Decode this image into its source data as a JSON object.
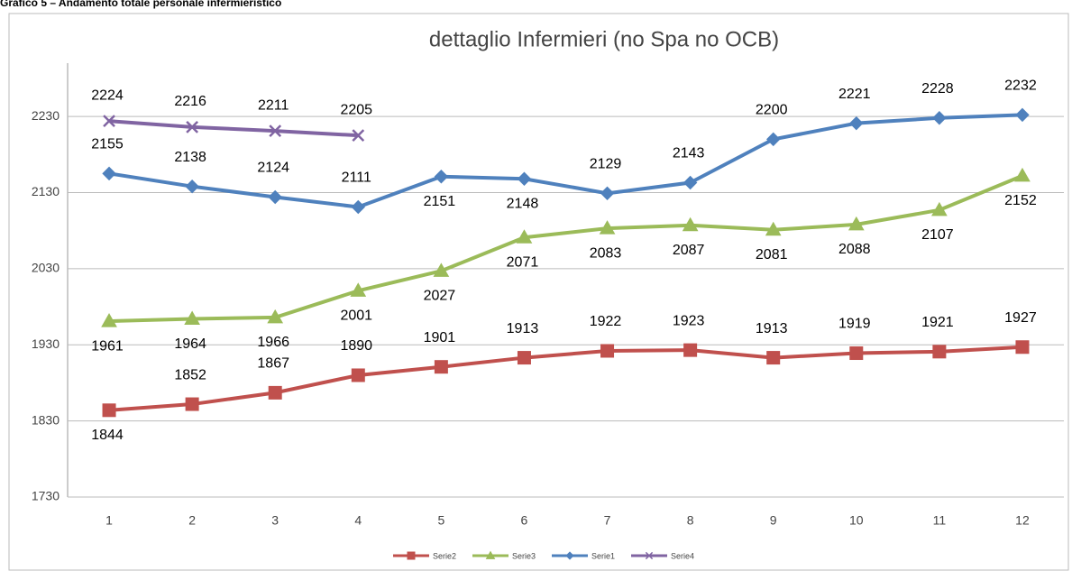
{
  "header": "Grafico 5 – Andamento totale personale infermieristico",
  "chart_data": {
    "type": "line",
    "title": "dettaglio Infermieri (no Spa no OCB)",
    "categories": [
      "1",
      "2",
      "3",
      "4",
      "5",
      "6",
      "7",
      "8",
      "9",
      "10",
      "11",
      "12"
    ],
    "ylim": [
      1730,
      2300
    ],
    "yticks": [
      1730,
      1830,
      1930,
      2030,
      2130,
      2230
    ],
    "grid": true,
    "legend": "bottom",
    "series": [
      {
        "name": "Serie2",
        "color": "#c0504d",
        "marker": "square",
        "values": [
          1844,
          1852,
          1867,
          1890,
          1901,
          1913,
          1922,
          1923,
          1913,
          1919,
          1921,
          1927
        ]
      },
      {
        "name": "Serie3",
        "color": "#9bbb59",
        "marker": "triangle",
        "values": [
          1961,
          1964,
          1966,
          2001,
          2027,
          2071,
          2083,
          2087,
          2081,
          2088,
          2107,
          2152
        ]
      },
      {
        "name": "Serie1",
        "color": "#4f81bd",
        "marker": "diamond",
        "values": [
          2155,
          2138,
          2124,
          2111,
          2151,
          2148,
          2129,
          2143,
          2200,
          2221,
          2228,
          2232
        ]
      },
      {
        "name": "Serie4",
        "color": "#8064a2",
        "marker": "x",
        "values": [
          2224,
          2216,
          2211,
          2205,
          null,
          null,
          null,
          null,
          null,
          null,
          null,
          null
        ]
      }
    ]
  }
}
